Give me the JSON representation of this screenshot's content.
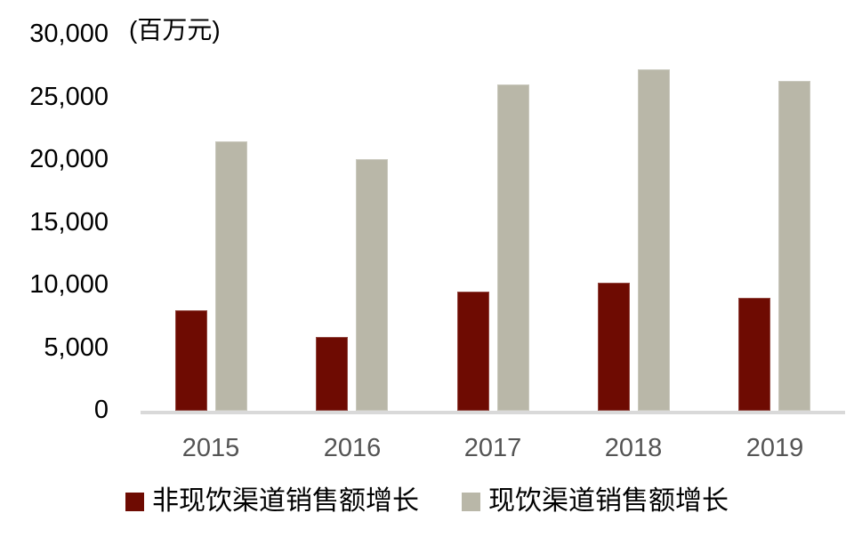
{
  "chart_data": {
    "type": "bar",
    "title": "",
    "unit_label": "(百万元)",
    "categories": [
      "2015",
      "2016",
      "2017",
      "2018",
      "2019"
    ],
    "series": [
      {
        "name": "非现饮渠道销售额增长",
        "color": "#6E0B02",
        "values": [
          8000,
          5900,
          9500,
          10200,
          9000
        ]
      },
      {
        "name": "现饮渠道销售额增长",
        "color": "#B9B7A8",
        "values": [
          21500,
          20100,
          26000,
          27200,
          26300
        ]
      }
    ],
    "ylim": [
      0,
      30000
    ],
    "y_ticks": [
      {
        "value": 0,
        "label": "0"
      },
      {
        "value": 5000,
        "label": "5,000"
      },
      {
        "value": 10000,
        "label": "10,000"
      },
      {
        "value": 15000,
        "label": "15,000"
      },
      {
        "value": 20000,
        "label": "20,000"
      },
      {
        "value": 25000,
        "label": "25,000"
      },
      {
        "value": 30000,
        "label": "30,000"
      }
    ],
    "grid": false,
    "legend_position": "bottom",
    "colors": {
      "axis_line": "#D9D9D9",
      "x_tick_label": "#545454",
      "y_tick_label": "#000000",
      "background": "#FFFFFF"
    }
  }
}
